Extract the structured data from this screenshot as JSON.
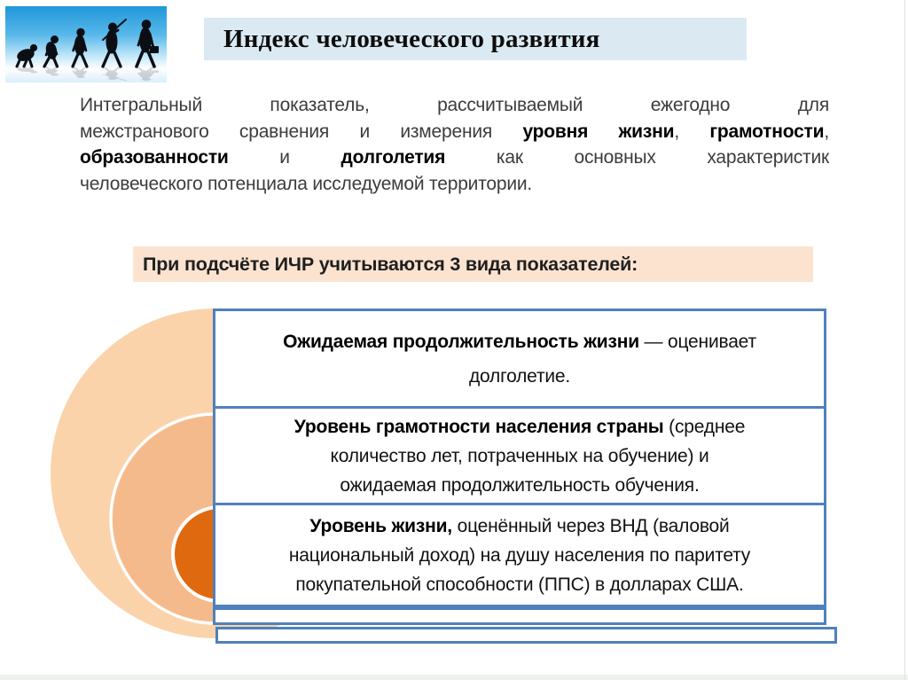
{
  "title": {
    "text": "Индекс человеческого развития",
    "bg_color": "#dbeaf2"
  },
  "intro": {
    "lines": [
      [
        {
          "t": "Интегральный показатель, рассчитываемый ежегодно для",
          "b": false
        }
      ],
      [
        {
          "t": "межстранового сравнения и измерения ",
          "b": false
        },
        {
          "t": "уровня жизни",
          "b": true
        },
        {
          "t": ", ",
          "b": false
        },
        {
          "t": "грамотности",
          "b": true
        },
        {
          "t": ",",
          "b": false
        }
      ],
      [
        {
          "t": "образованности",
          "b": true
        },
        {
          "t": " и ",
          "b": false
        },
        {
          "t": "долголетия",
          "b": true
        },
        {
          "t": " как основных характеристик",
          "b": false
        }
      ],
      [
        {
          "t": "человеческого потенциала исследуемой территории.",
          "b": false
        }
      ]
    ]
  },
  "subheader": {
    "text": "При подсчёте ИЧР учитываются 3 вида показателей:",
    "bg_color": "#fbe3d0"
  },
  "diagram": {
    "border_color": "#4f81bd",
    "circles": [
      {
        "name": "outer-circle-longevity",
        "color": "#fbd3ab",
        "stroke": "none"
      },
      {
        "name": "middle-circle-education",
        "color": "#f5ba8c",
        "stroke": "#ffffff"
      },
      {
        "name": "inner-circle-income",
        "color": "#df690f",
        "stroke": "#ffffff"
      }
    ],
    "boxes": [
      {
        "segments": [
          {
            "t": "Ожидаемая продолжительность жизни",
            "b": true
          },
          {
            "t": " — оценивает долголетие.",
            "b": false
          }
        ]
      },
      {
        "segments": [
          {
            "t": "Уровень грамотности населения страны",
            "b": true
          },
          {
            "t": " (среднее количество лет, потраченных на обучение) и ожидаемая продолжительность обучения.",
            "b": false
          }
        ]
      },
      {
        "segments": [
          {
            "t": "Уровень жизни,",
            "b": true
          },
          {
            "t": " оценённый через ВНД (валовой национальный доход)  на душу населения по паритету покупательной способности (ППС) в долларах США.",
            "b": false
          }
        ]
      },
      {
        "segments": []
      },
      {
        "segments": []
      }
    ]
  },
  "evolution_image": {
    "name": "evolution-of-man-clipart",
    "sky_top_color": "#1f97da",
    "sky_mid_color": "#8fd2f2",
    "figure_color": "#0b0f14"
  }
}
